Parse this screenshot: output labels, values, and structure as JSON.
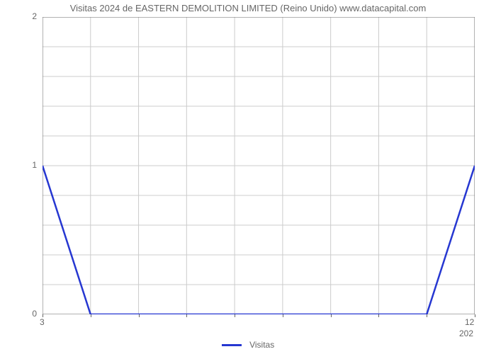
{
  "chart": {
    "type": "line",
    "title": "Visitas 2024 de EASTERN DEMOLITION LIMITED (Reino Unido) www.datacapital.com",
    "title_color": "#666666",
    "title_fontsize": 13,
    "background_color": "#ffffff",
    "plot_background": "#ffffff",
    "grid_color": "#cccccc",
    "axis_color": "#666666",
    "series": {
      "name": "Visitas",
      "color": "#2637d1",
      "line_width": 2.5,
      "x": [
        3,
        4,
        5,
        6,
        7,
        8,
        9,
        10,
        11,
        12
      ],
      "y": [
        1,
        0,
        0,
        0,
        0,
        0,
        0,
        0,
        0,
        1
      ]
    },
    "xaxis": {
      "min": 3,
      "max": 12,
      "ticks": [
        3,
        4,
        5,
        6,
        7,
        8,
        9,
        10,
        11,
        12
      ],
      "tick_labels_visible": {
        "3": "3",
        "12": "12"
      },
      "below_label": "202",
      "label_fontsize": 12,
      "label_color": "#666666"
    },
    "yaxis": {
      "min": 0,
      "max": 2,
      "major_ticks": [
        0,
        1,
        2
      ],
      "minor_steps": 5,
      "label_fontsize": 12,
      "label_color": "#666666"
    },
    "legend": {
      "label": "Visitas",
      "swatch_color": "#2637d1",
      "text_color": "#666666",
      "fontsize": 12
    }
  }
}
